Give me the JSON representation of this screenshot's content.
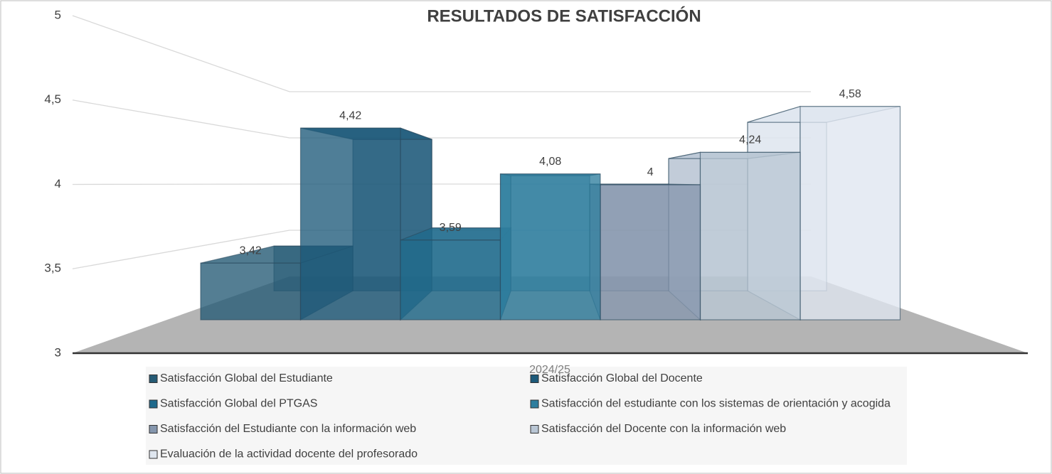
{
  "chart_data": {
    "type": "bar",
    "title": "RESULTADOS DE SATISFACCIÓN",
    "categories": [
      "2024/25"
    ],
    "series": [
      {
        "name": "Satisfacción Global del Estudiante",
        "color": "#245a74",
        "values": [
          3.42
        ],
        "value_labels": [
          "3,42"
        ]
      },
      {
        "name": "Satisfacción Global del Docente",
        "color": "#1d5a7a",
        "values": [
          4.42
        ],
        "value_labels": [
          "4,42"
        ]
      },
      {
        "name": "Satisfacción Global del PTGAS",
        "color": "#1f6a8c",
        "values": [
          3.59
        ],
        "value_labels": [
          "3,59"
        ]
      },
      {
        "name": "Satisfacción del estudiante con los sistemas de orientación y acogida",
        "color": "#2e7e9e",
        "values": [
          4.08
        ],
        "value_labels": [
          "4,08"
        ]
      },
      {
        "name": "Satisfacción del Estudiante con la información web",
        "color": "#8596ad",
        "values": [
          4
        ]
      },
      {
        "name": "Satisfacción del Docente con la información web",
        "color": "#b9c6d4",
        "values": [
          4.24
        ],
        "value_labels": [
          "4,24"
        ]
      },
      {
        "name": "Evaluación de la actividad docente del profesorado",
        "color": "#dfe6ef",
        "values": [
          4.58
        ],
        "value_labels": [
          "4,58"
        ]
      }
    ],
    "ylim": [
      3,
      5
    ],
    "yticks": [
      3,
      {
        "value": 3.5,
        "label": "3,5"
      },
      4,
      {
        "value": 4.5,
        "label": "4,5"
      },
      5
    ],
    "grid": true
  }
}
